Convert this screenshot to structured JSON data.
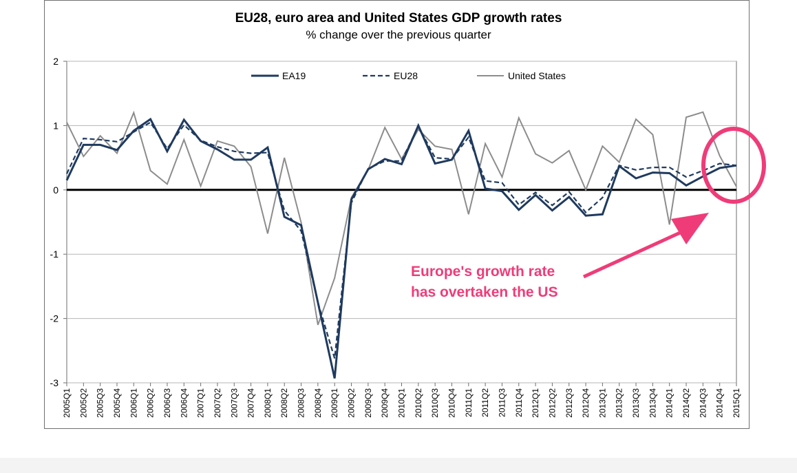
{
  "chart_data": {
    "type": "line",
    "title": "EU28, euro area and United States GDP growth rates",
    "subtitle": "% change over the previous quarter",
    "xlabel": "",
    "ylabel": "",
    "ylim": [
      -3,
      2
    ],
    "yticks": [
      "2",
      "1",
      "0",
      "-1",
      "-2",
      "-3"
    ],
    "grid": true,
    "legend": "top",
    "categories": [
      "2005Q1",
      "2005Q2",
      "2005Q3",
      "2005Q4",
      "2006Q1",
      "2006Q2",
      "2006Q3",
      "2006Q4",
      "2007Q1",
      "2007Q2",
      "2007Q3",
      "2007Q4",
      "2008Q1",
      "2008Q2",
      "2008Q3",
      "2008Q4",
      "2009Q1",
      "2009Q2",
      "2009Q3",
      "2009Q4",
      "2010Q1",
      "2010Q2",
      "2010Q3",
      "2010Q4",
      "2011Q1",
      "2011Q2",
      "2011Q3",
      "2011Q4",
      "2012Q1",
      "2012Q2",
      "2012Q3",
      "2012Q4",
      "2013Q1",
      "2013Q2",
      "2013Q3",
      "2013Q4",
      "2014Q1",
      "2014Q2",
      "2014Q3",
      "2014Q4",
      "2015Q1"
    ],
    "series": [
      {
        "name": "EA19",
        "color": "#1f3a5f",
        "style": "solid",
        "values": [
          0.15,
          0.7,
          0.7,
          0.62,
          0.92,
          1.1,
          0.6,
          1.09,
          0.76,
          0.63,
          0.47,
          0.47,
          0.66,
          -0.42,
          -0.55,
          -1.75,
          -2.93,
          -0.15,
          0.32,
          0.48,
          0.4,
          1.0,
          0.41,
          0.47,
          0.92,
          0.02,
          -0.02,
          -0.31,
          -0.08,
          -0.32,
          -0.11,
          -0.4,
          -0.38,
          0.37,
          0.18,
          0.27,
          0.26,
          0.07,
          0.21,
          0.34,
          0.38
        ]
      },
      {
        "name": "EU28",
        "color": "#1f3a5f",
        "style": "dashed",
        "values": [
          0.25,
          0.8,
          0.78,
          0.75,
          0.9,
          1.05,
          0.64,
          1.01,
          0.77,
          0.67,
          0.6,
          0.57,
          0.58,
          -0.32,
          -0.64,
          -1.75,
          -2.62,
          -0.2,
          0.33,
          0.45,
          0.45,
          0.99,
          0.5,
          0.48,
          0.82,
          0.14,
          0.11,
          -0.23,
          -0.04,
          -0.24,
          -0.03,
          -0.35,
          -0.12,
          0.38,
          0.31,
          0.35,
          0.35,
          0.2,
          0.3,
          0.41,
          0.38
        ]
      },
      {
        "name": "United States",
        "color": "#8c8c8c",
        "style": "solid",
        "values": [
          1.05,
          0.52,
          0.84,
          0.57,
          1.2,
          0.3,
          0.09,
          0.78,
          0.06,
          0.76,
          0.68,
          0.36,
          -0.68,
          0.5,
          -0.51,
          -2.1,
          -1.37,
          -0.12,
          0.31,
          0.97,
          0.48,
          0.94,
          0.68,
          0.63,
          -0.38,
          0.72,
          0.2,
          1.12,
          0.56,
          0.42,
          0.61,
          0.0,
          0.68,
          0.43,
          1.1,
          0.86,
          -0.54,
          1.13,
          1.21,
          0.53,
          0.05
        ]
      }
    ]
  },
  "annotation": {
    "line1": "Europe's growth rate",
    "line2": "has overtaken the US",
    "color": "#ef3c79"
  }
}
